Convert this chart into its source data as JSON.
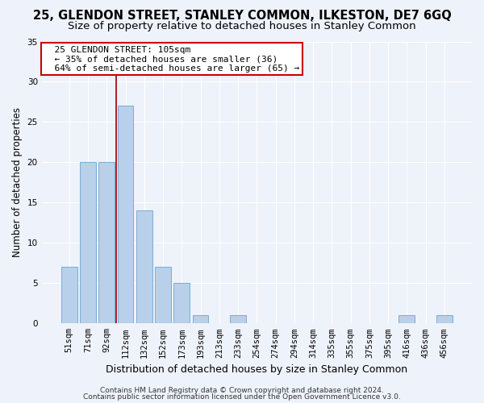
{
  "title": "25, GLENDON STREET, STANLEY COMMON, ILKESTON, DE7 6GQ",
  "subtitle": "Size of property relative to detached houses in Stanley Common",
  "xlabel": "Distribution of detached houses by size in Stanley Common",
  "ylabel": "Number of detached properties",
  "categories": [
    "51sqm",
    "71sqm",
    "92sqm",
    "112sqm",
    "132sqm",
    "152sqm",
    "173sqm",
    "193sqm",
    "213sqm",
    "233sqm",
    "254sqm",
    "274sqm",
    "294sqm",
    "314sqm",
    "335sqm",
    "355sqm",
    "375sqm",
    "395sqm",
    "416sqm",
    "436sqm",
    "456sqm"
  ],
  "values": [
    7,
    20,
    20,
    27,
    14,
    7,
    5,
    1,
    0,
    1,
    0,
    0,
    0,
    0,
    0,
    0,
    0,
    0,
    1,
    0,
    1
  ],
  "bar_color": "#b8d0ea",
  "bar_edge_color": "#7aadd4",
  "red_line_x": 2.5,
  "ylim": [
    0,
    35
  ],
  "yticks": [
    0,
    5,
    10,
    15,
    20,
    25,
    30,
    35
  ],
  "annotation_text": "  25 GLENDON STREET: 105sqm\n  ← 35% of detached houses are smaller (36)\n  64% of semi-detached houses are larger (65) →",
  "annotation_box_facecolor": "#ffffff",
  "annotation_box_edgecolor": "#cc0000",
  "footnote1": "Contains HM Land Registry data © Crown copyright and database right 2024.",
  "footnote2": "Contains public sector information licensed under the Open Government Licence v3.0.",
  "background_color": "#eef2fa",
  "grid_color": "#ffffff",
  "title_fontsize": 10.5,
  "subtitle_fontsize": 9.5,
  "ylabel_fontsize": 8.5,
  "xlabel_fontsize": 9,
  "tick_fontsize": 7.5,
  "annotation_fontsize": 8,
  "footnote_fontsize": 6.5
}
